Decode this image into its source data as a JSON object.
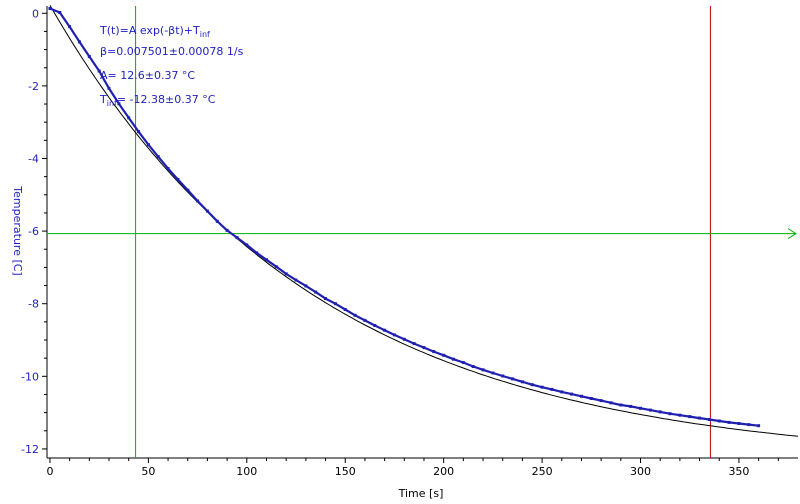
{
  "chart_data": {
    "type": "scatter",
    "xlabel": "Time [s]",
    "ylabel": "Temperature [C]",
    "xlim": [
      -1.5,
      380
    ],
    "ylim": [
      -12.25,
      0.2
    ],
    "x_ticks": [
      0,
      50,
      100,
      150,
      200,
      250,
      300,
      350
    ],
    "y_ticks": [
      0,
      -2,
      -4,
      -6,
      -8,
      -10,
      -12
    ],
    "grid": false,
    "colors": {
      "data": "#2020b0",
      "fit": "#000000",
      "axis_text": "#1f1fbf",
      "green_cursor": "#00b000",
      "red_cursor": "#c00000",
      "axis": "#000000"
    },
    "annotations": {
      "formula_main": "T(t)=A exp(-βt)+T",
      "formula_sub": "inf",
      "beta": "β=0.007501±0.00078 1/s",
      "A": "A= 12.6±0.37 °C",
      "tinf_main": "T",
      "tinf_sub": "inf",
      "tinf_value": "= -12.38±0.37 °C"
    },
    "markers": {
      "vertical_green_x": 43.5,
      "vertical_red_x": 335.5,
      "horizontal_green_y": -6.07
    },
    "fit": {
      "model": "exponential",
      "A": 12.6,
      "beta": 0.007501,
      "T_inf": -12.38,
      "x_range": [
        0,
        380
      ]
    },
    "series": [
      {
        "x": [
          0,
          5,
          10,
          15,
          20,
          25,
          30,
          35,
          40,
          45,
          50,
          55,
          60,
          65,
          70,
          75,
          80,
          85,
          90,
          95,
          100,
          105,
          110,
          115,
          120,
          125,
          130,
          135,
          140,
          145,
          150,
          155,
          160,
          165,
          170,
          175,
          180,
          185,
          190,
          195,
          200,
          205,
          210,
          215,
          220,
          225,
          230,
          235,
          240,
          245,
          250,
          255,
          260,
          265,
          270,
          275,
          280,
          285,
          290,
          295,
          300,
          305,
          310,
          315,
          320,
          325,
          330,
          335,
          340,
          345,
          350,
          355,
          360
        ],
        "y": [
          0.13,
          0.02,
          -0.37,
          -0.79,
          -1.19,
          -1.59,
          -2.07,
          -2.49,
          -2.88,
          -3.26,
          -3.62,
          -3.95,
          -4.28,
          -4.58,
          -4.87,
          -5.17,
          -5.45,
          -5.73,
          -5.98,
          -6.18,
          -6.38,
          -6.6,
          -6.79,
          -6.98,
          -7.18,
          -7.35,
          -7.51,
          -7.68,
          -7.86,
          -8.0,
          -8.16,
          -8.32,
          -8.46,
          -8.6,
          -8.73,
          -8.86,
          -8.98,
          -9.1,
          -9.21,
          -9.32,
          -9.42,
          -9.53,
          -9.62,
          -9.73,
          -9.82,
          -9.91,
          -9.99,
          -10.07,
          -10.15,
          -10.23,
          -10.3,
          -10.36,
          -10.43,
          -10.49,
          -10.55,
          -10.61,
          -10.67,
          -10.73,
          -10.79,
          -10.83,
          -10.88,
          -10.93,
          -10.98,
          -11.03,
          -11.07,
          -11.11,
          -11.15,
          -11.19,
          -11.23,
          -11.27,
          -11.3,
          -11.33,
          -11.36
        ]
      }
    ]
  }
}
